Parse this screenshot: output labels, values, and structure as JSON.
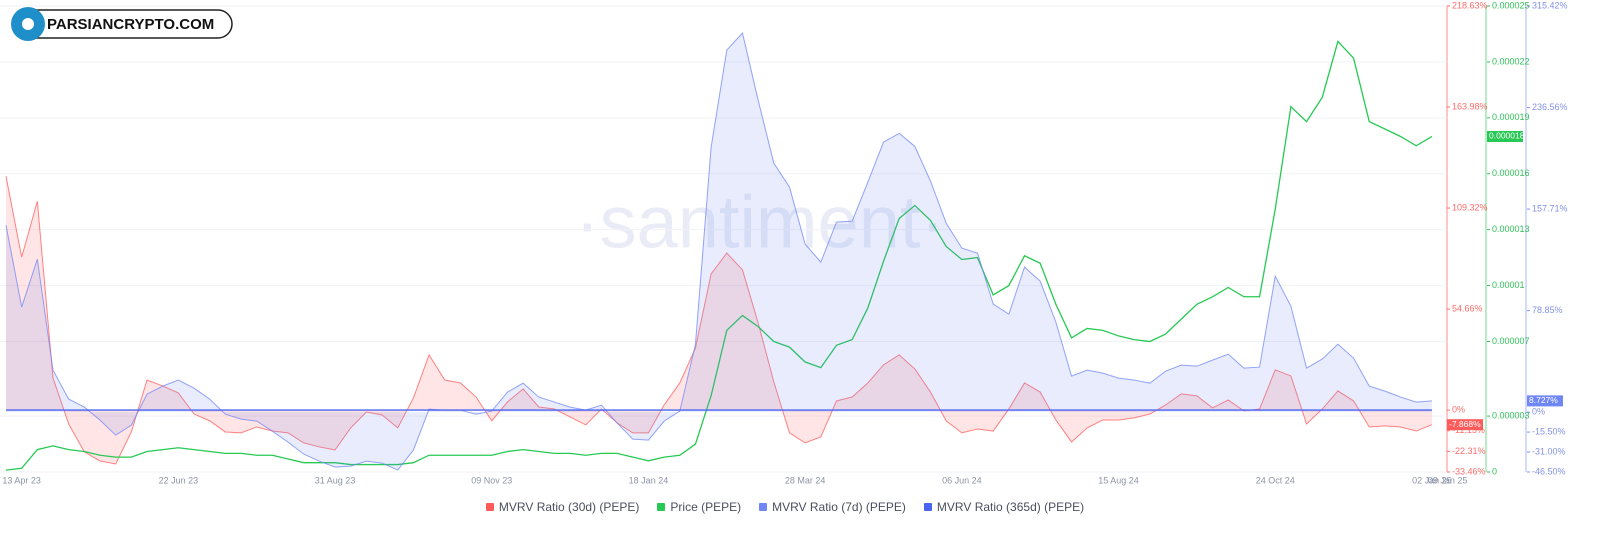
{
  "chart_data": {
    "type": "line",
    "logo_text": "PARSIANCRYPTO.COM",
    "watermark": "·santiment·",
    "legend": "bottom",
    "grid": true,
    "categories": [
      null,
      "13 Apr 23",
      null,
      null,
      null,
      null,
      null,
      null,
      null,
      null,
      null,
      "22 Jun 23",
      null,
      null,
      null,
      null,
      null,
      null,
      null,
      null,
      null,
      "31 Aug 23",
      null,
      null,
      null,
      null,
      null,
      null,
      null,
      null,
      null,
      "09 Nov 23",
      null,
      null,
      null,
      null,
      null,
      null,
      null,
      null,
      null,
      "18 Jan 24",
      null,
      null,
      null,
      null,
      null,
      null,
      null,
      null,
      null,
      "28 Mar 24",
      null,
      null,
      null,
      null,
      null,
      null,
      null,
      null,
      null,
      "06 Jun 24",
      null,
      null,
      null,
      null,
      null,
      null,
      null,
      null,
      null,
      "15 Aug 24",
      null,
      null,
      null,
      null,
      null,
      null,
      null,
      null,
      null,
      "24 Oct 24",
      null,
      null,
      null,
      null,
      null,
      null,
      null,
      null,
      null,
      "02 Jan 25",
      "09 Jan 25"
    ],
    "ylim": [
      -33.46,
      218.63
    ],
    "yticks": [
      {
        "value": 218.63,
        "label": "218.63%"
      },
      {
        "value": 163.98,
        "label": "163.98%"
      },
      {
        "value": 109.32,
        "label": "109.32%"
      },
      {
        "value": 54.66,
        "label": "54.66%"
      },
      {
        "value": 0,
        "label": "0%"
      },
      {
        "value": -11.15,
        "label": "-11.15%"
      },
      {
        "value": -22.31,
        "label": "-22.31%"
      },
      {
        "value": -33.46,
        "label": "-33.46%"
      }
    ],
    "y2lim": [
      0,
      2.5e-05
    ],
    "y2ticks": [
      2.5e-05,
      2.2e-05,
      1.9e-05,
      1.6e-05,
      1.3e-05,
      1e-05,
      7e-06,
      3e-06,
      0
    ],
    "y3lim": [
      -46.5,
      315.42
    ],
    "y3ticks": [
      {
        "value": 315.42,
        "label": "315.42%"
      },
      {
        "value": 236.56,
        "label": "236.56%"
      },
      {
        "value": 157.71,
        "label": "157.71%"
      },
      {
        "value": 78.85,
        "label": "78.85%"
      },
      {
        "value": 0,
        "label": "0%"
      },
      {
        "value": -15.5,
        "label": "-15.50%"
      },
      {
        "value": -31,
        "label": "-31.00%"
      },
      {
        "value": -46.5,
        "label": "-46.50%"
      }
    ],
    "series": [
      {
        "name": "MVRV Ratio (30d) (PEPE)",
        "color": "#ff5b5b",
        "axis": "y",
        "area": true,
        "last_label": "-7.868%",
        "values": [
          126.6,
          82.8,
          113,
          17.4,
          -7.5,
          -22.6,
          -27.5,
          -29.1,
          -11.8,
          16.3,
          13.1,
          9.3,
          -2.1,
          -5.8,
          -11.8,
          -12.3,
          -9.1,
          -11.3,
          -12.3,
          -17.7,
          -19.9,
          -21.5,
          -9.6,
          -1,
          -2.6,
          -9.6,
          6.6,
          29.9,
          16.3,
          14.7,
          7.1,
          -5.8,
          4.4,
          11.5,
          1.7,
          0.6,
          -3.7,
          -8,
          0.6,
          -6.9,
          -12.3,
          -12.3,
          2.8,
          14.7,
          33.6,
          73.7,
          85,
          75.9,
          47.2,
          15.3,
          -12.3,
          -17.7,
          -14.5,
          5,
          7.1,
          14.7,
          24.5,
          29.9,
          22.3,
          9.8,
          -5.8,
          -12.3,
          -10.2,
          -11.3,
          0.6,
          14.7,
          9.8,
          -5.3,
          -17.2,
          -9.6,
          -5.3,
          -5.3,
          -4.2,
          -2.1,
          2.8,
          8.8,
          7.7,
          1.2,
          5.5,
          -0.4,
          0.6,
          21.8,
          18.5,
          -7.5,
          0.6,
          10.4,
          5,
          -9.1,
          -8.5,
          -9.1,
          -11.3,
          -7.868,
          null
        ]
      },
      {
        "name": "Price (PEPE)",
        "color": "#26c953",
        "axis": "y2",
        "area": false,
        "last_label": "0.000018",
        "values": [
          1e-07,
          2e-07,
          1.2e-06,
          1.4e-06,
          1.2e-06,
          1.1e-06,
          9e-07,
          8e-07,
          8e-07,
          1.1e-06,
          1.2e-06,
          1.3e-06,
          1.2e-06,
          1.1e-06,
          1e-06,
          1e-06,
          9e-07,
          9e-07,
          7e-07,
          5e-07,
          5e-07,
          5e-07,
          4e-07,
          4e-07,
          4e-07,
          4e-07,
          5e-07,
          9e-07,
          9e-07,
          9e-07,
          9e-07,
          9e-07,
          1.1e-06,
          1.2e-06,
          1.1e-06,
          1e-06,
          1e-06,
          9e-07,
          1e-06,
          1e-06,
          8e-07,
          6e-07,
          8e-07,
          9e-07,
          1.5e-06,
          4.1e-06,
          7.6e-06,
          8.4e-06,
          7.8e-06,
          7e-06,
          6.7e-06,
          5.9e-06,
          5.6e-06,
          6.8e-06,
          7.1e-06,
          8.8e-06,
          1.13e-05,
          1.36e-05,
          1.43e-05,
          1.35e-05,
          1.21e-05,
          1.14e-05,
          1.15e-05,
          9.5e-06,
          1e-05,
          1.16e-05,
          1.12e-05,
          9e-06,
          7.2e-06,
          7.7e-06,
          7.6e-06,
          7.3e-06,
          7.1e-06,
          7e-06,
          7.4e-06,
          8.2e-06,
          9e-06,
          9.4e-06,
          9.9e-06,
          9.4e-06,
          9.4e-06,
          1.41e-05,
          1.96e-05,
          1.88e-05,
          2.01e-05,
          2.31e-05,
          2.22e-05,
          1.88e-05,
          1.84e-05,
          1.8e-05,
          1.75e-05,
          1.8e-05,
          null
        ]
      },
      {
        "name": "MVRV Ratio (7d) (PEPE)",
        "color": "#6f86f5",
        "axis": "y3",
        "area": true,
        "last_label": "8.727%",
        "values": [
          145.2,
          81.6,
          118.8,
          32.6,
          10.1,
          3.9,
          -6.2,
          -17.9,
          -10.1,
          14,
          20.2,
          24.9,
          18.6,
          10.1,
          -1.6,
          -5.4,
          -7,
          -14.8,
          -23.3,
          -32.6,
          -38.1,
          -42.7,
          -41.9,
          -38.1,
          -39.6,
          -45,
          -29.5,
          2.3,
          1.6,
          1.6,
          -1.6,
          0.8,
          15.5,
          22.5,
          11.7,
          7.8,
          3.9,
          1.6,
          5.4,
          -8.5,
          -21,
          -21.7,
          -7,
          0.8,
          52.8,
          205.8,
          281.2,
          294.4,
          242.3,
          193.4,
          174.8,
          130.5,
          116.5,
          147.6,
          148.3,
          178.6,
          209.7,
          216.5,
          206.4,
          179.4,
          146.8,
          127.4,
          123.5,
          83.9,
          76.1,
          112.6,
          101.7,
          69.9,
          28,
          32.6,
          30.3,
          26.4,
          24.9,
          22.5,
          31.8,
          36.5,
          35.7,
          40.4,
          45,
          34.2,
          35,
          105.6,
          82.3,
          34.2,
          41.2,
          52.8,
          41.9,
          20.2,
          16.3,
          11.7,
          7.8,
          8.727,
          null
        ]
      },
      {
        "name": "MVRV Ratio (365d) (PEPE)",
        "color": "#4a63f0",
        "axis": "y3",
        "area": false,
        "values": [
          1.6,
          1.6,
          1.6,
          1.6,
          1.6,
          1.6,
          1.6,
          1.6,
          1.6,
          1.6,
          1.6,
          1.6,
          1.6,
          1.6,
          1.6,
          1.6,
          1.6,
          1.6,
          1.6,
          1.6,
          1.6,
          1.6,
          1.6,
          1.6,
          1.6,
          1.6,
          1.6,
          1.6,
          1.6,
          1.6,
          1.6,
          1.6,
          1.6,
          1.6,
          1.6,
          1.6,
          1.6,
          1.6,
          1.6,
          1.6,
          1.6,
          1.6,
          1.6,
          1.6,
          1.6,
          1.6,
          1.6,
          1.6,
          1.6,
          1.6,
          1.6,
          1.6,
          1.6,
          1.6,
          1.6,
          1.6,
          1.6,
          1.6,
          1.6,
          1.6,
          1.6,
          1.6,
          1.6,
          1.6,
          1.6,
          1.6,
          1.6,
          1.6,
          1.6,
          1.6,
          1.6,
          1.6,
          1.6,
          1.6,
          1.6,
          1.6,
          1.6,
          1.6,
          1.6,
          1.6,
          1.6,
          1.6,
          1.6,
          1.6,
          1.6,
          1.6,
          1.6,
          1.6,
          1.6,
          1.6,
          1.6,
          1.6,
          null
        ]
      }
    ]
  }
}
